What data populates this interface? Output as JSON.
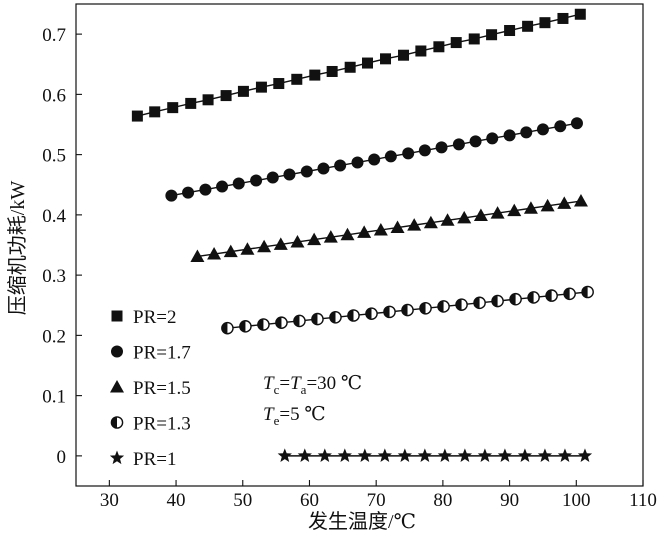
{
  "chart_data": {
    "type": "line",
    "xlabel": "发生温度/℃",
    "ylabel": "压缩机功耗/kW",
    "xlim": [
      25,
      110
    ],
    "ylim": [
      -0.05,
      0.75
    ],
    "xticks": [
      30,
      40,
      50,
      60,
      70,
      80,
      90,
      100,
      110
    ],
    "yticks": [
      0,
      0.1,
      0.2,
      0.3,
      0.4,
      0.5,
      0.6,
      0.7
    ],
    "xtick_labels": [
      "30",
      "40",
      "50",
      "60",
      "70",
      "80",
      "90",
      "100",
      "110"
    ],
    "ytick_labels": [
      "0",
      "0.1",
      "0.2",
      "0.3",
      "0.4",
      "0.5",
      "0.6",
      "0.7"
    ],
    "grid": false,
    "legend_position": "bottom-left",
    "annotations": [
      {
        "line1": {
          "T": "T",
          "c": "c",
          "eq1": "=",
          "T2": "T",
          "a": "a",
          "eq2": "=30 ℃"
        }
      },
      {
        "line2": {
          "T": "T",
          "e": "e",
          "eq": "=5 ℃"
        }
      }
    ],
    "series": [
      {
        "name": "PR=2",
        "marker": "square",
        "x": [
          34.2,
          36.8,
          39.5,
          42.2,
          44.8,
          47.5,
          50.1,
          52.8,
          55.4,
          58.1,
          60.8,
          63.4,
          66.1,
          68.7,
          71.4,
          74.1,
          76.7,
          79.4,
          82.0,
          84.7,
          87.3,
          90.0,
          92.7,
          95.3,
          98.0,
          100.6
        ],
        "y": [
          0.564,
          0.571,
          0.578,
          0.585,
          0.591,
          0.598,
          0.605,
          0.612,
          0.618,
          0.625,
          0.632,
          0.638,
          0.645,
          0.652,
          0.659,
          0.665,
          0.672,
          0.679,
          0.686,
          0.692,
          0.699,
          0.706,
          0.713,
          0.719,
          0.726,
          0.733
        ]
      },
      {
        "name": "PR=1.7",
        "marker": "circle",
        "x": [
          39.3,
          41.8,
          44.4,
          46.9,
          49.4,
          52.0,
          54.5,
          57.0,
          59.6,
          62.1,
          64.6,
          67.2,
          69.7,
          72.2,
          74.8,
          77.3,
          79.8,
          82.4,
          84.9,
          87.4,
          90.0,
          92.5,
          95.0,
          97.6,
          100.1
        ],
        "y": [
          0.432,
          0.437,
          0.442,
          0.447,
          0.452,
          0.457,
          0.462,
          0.467,
          0.472,
          0.477,
          0.482,
          0.487,
          0.492,
          0.497,
          0.502,
          0.507,
          0.512,
          0.517,
          0.522,
          0.527,
          0.532,
          0.537,
          0.542,
          0.547,
          0.552
        ]
      },
      {
        "name": "PR=1.5",
        "marker": "triangle",
        "x": [
          43.2,
          45.7,
          48.2,
          50.7,
          53.2,
          55.7,
          58.2,
          60.7,
          63.2,
          65.7,
          68.2,
          70.7,
          73.2,
          75.7,
          78.2,
          80.7,
          83.2,
          85.7,
          88.2,
          90.7,
          93.2,
          95.7,
          98.2,
          100.7
        ],
        "y": [
          0.331,
          0.335,
          0.339,
          0.343,
          0.347,
          0.351,
          0.355,
          0.359,
          0.363,
          0.367,
          0.371,
          0.375,
          0.379,
          0.383,
          0.387,
          0.391,
          0.395,
          0.399,
          0.403,
          0.407,
          0.411,
          0.415,
          0.419,
          0.423
        ]
      },
      {
        "name": "PR=1.3",
        "marker": "half-circle",
        "x": [
          47.7,
          50.4,
          53.1,
          55.8,
          58.5,
          61.2,
          63.9,
          66.6,
          69.3,
          72.0,
          74.7,
          77.4,
          80.1,
          82.8,
          85.5,
          88.2,
          90.9,
          93.6,
          96.3,
          99.0,
          101.7
        ],
        "y": [
          0.212,
          0.215,
          0.218,
          0.221,
          0.224,
          0.227,
          0.23,
          0.233,
          0.236,
          0.239,
          0.242,
          0.245,
          0.248,
          0.251,
          0.254,
          0.257,
          0.26,
          0.263,
          0.266,
          0.269,
          0.272
        ]
      },
      {
        "name": "PR=1",
        "marker": "star",
        "x": [
          56.3,
          59.3,
          62.3,
          65.3,
          68.3,
          71.3,
          74.3,
          77.3,
          80.3,
          83.3,
          86.3,
          89.3,
          92.3,
          95.3,
          98.3,
          101.3
        ],
        "y": [
          0,
          0,
          0,
          0,
          0,
          0,
          0,
          0,
          0,
          0,
          0,
          0,
          0,
          0,
          0,
          0
        ]
      }
    ]
  }
}
